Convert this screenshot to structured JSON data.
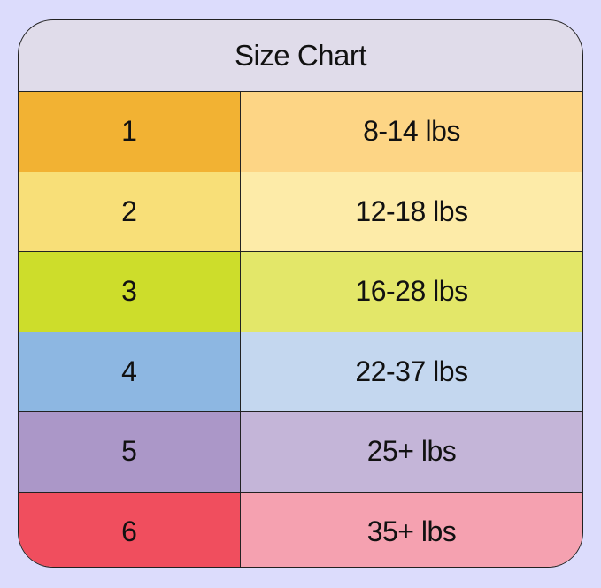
{
  "title": "Size Chart",
  "rows": [
    {
      "size": "1",
      "weight": "8-14 lbs",
      "color_dark": "#f2b233",
      "color_light": "#fdd585"
    },
    {
      "size": "2",
      "weight": "12-18 lbs",
      "color_dark": "#f8df78",
      "color_light": "#fdeba8"
    },
    {
      "size": "3",
      "weight": "16-28 lbs",
      "color_dark": "#cddd2b",
      "color_light": "#e3e769"
    },
    {
      "size": "4",
      "weight": "22-37 lbs",
      "color_dark": "#8db7e2",
      "color_light": "#c4d7ef"
    },
    {
      "size": "5",
      "weight": "25+ lbs",
      "color_dark": "#ab97c8",
      "color_light": "#c4b5d8"
    },
    {
      "size": "6",
      "weight": "35+ lbs",
      "color_dark": "#f04e5e",
      "color_light": "#f5a1b0"
    }
  ]
}
